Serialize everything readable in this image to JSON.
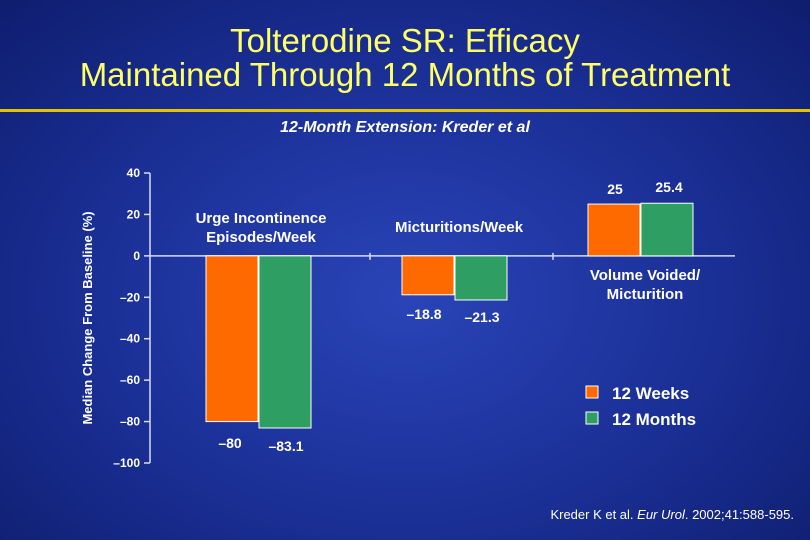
{
  "title": {
    "line1": "Tolterodine SR: Efficacy",
    "line2": "Maintained Through 12 Months of Treatment"
  },
  "subtitle": "12-Month Extension: Kreder et al",
  "citation": {
    "prefix": "Kreder K et al. ",
    "journal": "Eur Urol",
    "suffix": ". 2002;41:588-595."
  },
  "colors": {
    "series1": "#ff6a00",
    "series2": "#2f9e63",
    "title": "#ffff66",
    "background": "#1a2f95"
  },
  "chart_data": {
    "type": "bar",
    "title": "12-Month Extension: Kreder et al",
    "xlabel": "",
    "ylabel": "Median Change From Baseline (%)",
    "ylim": [
      -100,
      40
    ],
    "yticks": [
      40,
      20,
      0,
      -20,
      -40,
      -60,
      -80,
      -100
    ],
    "ytick_labels": [
      "40",
      "20",
      "0",
      "–20",
      "–40",
      "–60",
      "–80",
      "–100"
    ],
    "categories": [
      "Urge Incontinence Episodes/Week",
      "Micturitions/Week",
      "Volume Voided/ Micturition"
    ],
    "category_label_lines": [
      [
        "Urge Incontinence",
        "Episodes/Week"
      ],
      [
        "Micturitions/Week"
      ],
      [
        "Volume Voided/",
        "Micturition"
      ]
    ],
    "series": [
      {
        "name": "12 Weeks",
        "values": [
          -80,
          -18.8,
          25
        ],
        "labels": [
          "–80",
          "–18.8",
          "25"
        ]
      },
      {
        "name": "12 Months",
        "values": [
          -83.1,
          -21.3,
          25.4
        ],
        "labels": [
          "–83.1",
          "–21.3",
          "25.4"
        ]
      }
    ],
    "legend": [
      "12 Weeks",
      "12 Months"
    ],
    "legend_position": "bottom-right"
  }
}
